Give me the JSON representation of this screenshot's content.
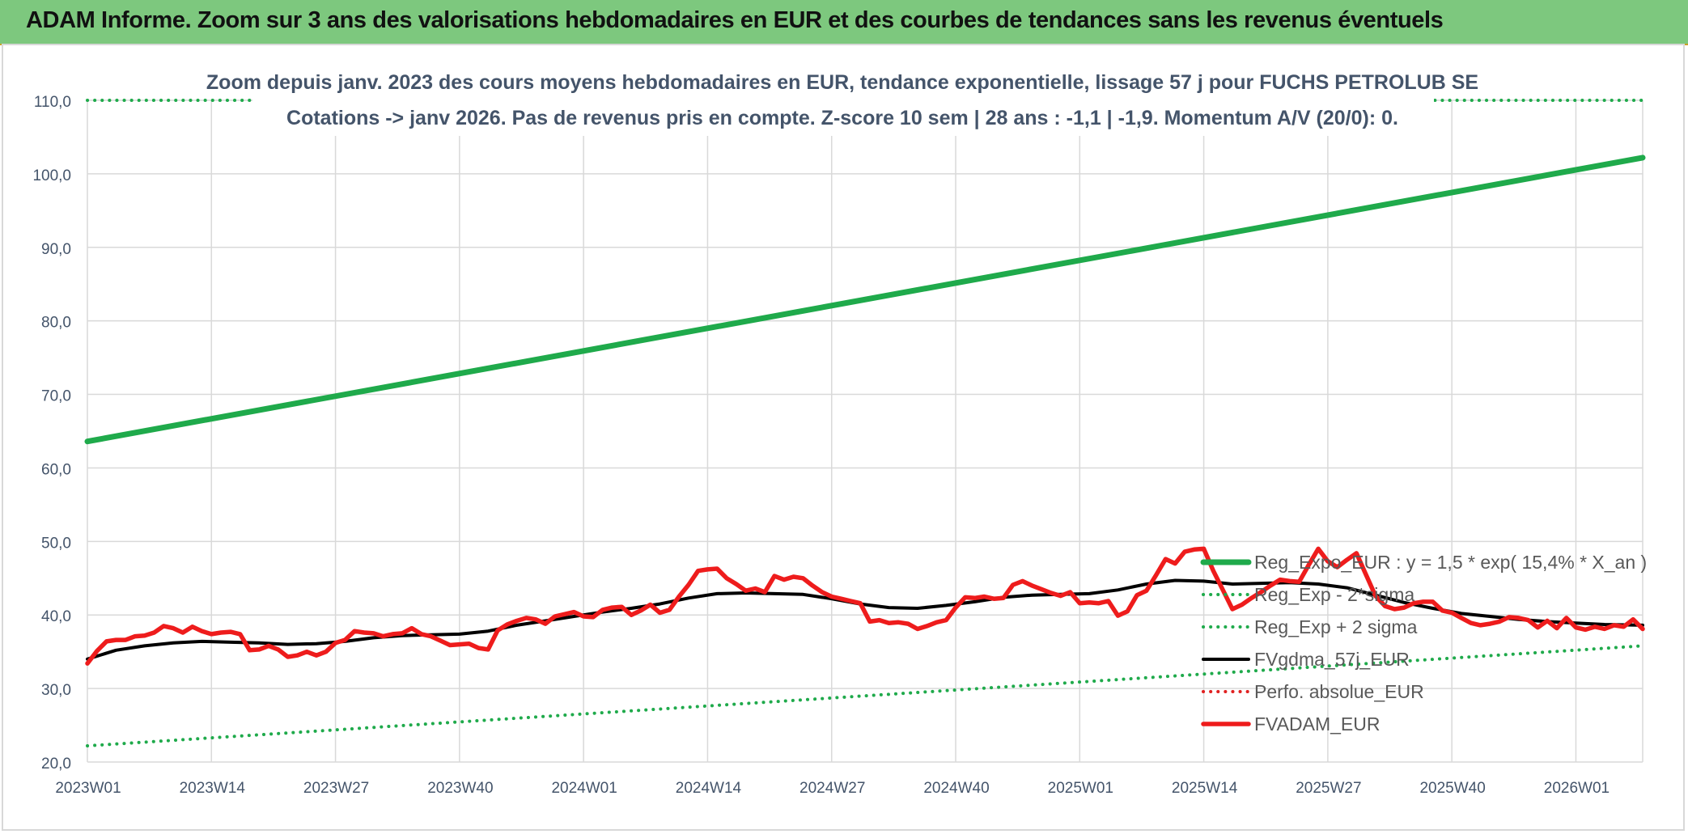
{
  "banner": {
    "title": "ADAM Informe. Zoom sur 3 ans des valorisations hebdomadaires en EUR et des courbes de tendances sans les revenus éventuels"
  },
  "chart_data": {
    "type": "line",
    "title": "Zoom depuis janv. 2023 des cours moyens hebdomadaires en EUR, tendance exponentielle, lissage 57 j pour FUCHS PETROLUB SE",
    "subtitle": "Cotations -> janv 2026. Pas de revenus pris en compte. Z-score 10 sem | 28 ans : -1,1 | -1,9. Momentum A/V (20/0): 0.",
    "xlabel": "",
    "ylabel": "",
    "ylim": [
      20,
      110
    ],
    "y_ticks": [
      "20,0",
      "30,0",
      "40,0",
      "50,0",
      "60,0",
      "70,0",
      "80,0",
      "90,0",
      "100,0",
      "110,0"
    ],
    "x_range": [
      0,
      163
    ],
    "x_ticks": [
      {
        "label": "2023W01",
        "x": 0
      },
      {
        "label": "2023W14",
        "x": 13
      },
      {
        "label": "2023W27",
        "x": 26
      },
      {
        "label": "2023W40",
        "x": 39
      },
      {
        "label": "2024W01",
        "x": 52
      },
      {
        "label": "2024W14",
        "x": 65
      },
      {
        "label": "2024W27",
        "x": 78
      },
      {
        "label": "2024W40",
        "x": 91
      },
      {
        "label": "2025W01",
        "x": 104
      },
      {
        "label": "2025W14",
        "x": 117
      },
      {
        "label": "2025W27",
        "x": 130
      },
      {
        "label": "2025W40",
        "x": 143
      },
      {
        "label": "2026W01",
        "x": 156
      }
    ],
    "grid": true,
    "legend_position": "right",
    "series": [
      {
        "name": "Reg_Expo_EUR : y = 1,5 * exp( 15,4% *  X_an )",
        "color": "#1faa4b",
        "style": "solid-thick",
        "points": [
          [
            0,
            63.6
          ],
          [
            163,
            102.2
          ]
        ]
      },
      {
        "name": "Reg_Exp - 2*sigma",
        "color": "#1faa4b",
        "style": "dotted",
        "points": [
          [
            0,
            22.2
          ],
          [
            163,
            35.8
          ]
        ]
      },
      {
        "name": "Reg_Exp + 2 sigma",
        "color": "#1faa4b",
        "style": "dotted",
        "points": [
          [
            0,
            110
          ],
          [
            17,
            110
          ],
          [
            139,
            110
          ],
          [
            163,
            110
          ]
        ]
      },
      {
        "name": "FVgdma_57j_EUR",
        "color": "#000000",
        "style": "solid",
        "points": [
          [
            0,
            34
          ],
          [
            3,
            35.2
          ],
          [
            6,
            35.8
          ],
          [
            9,
            36.2
          ],
          [
            12,
            36.4
          ],
          [
            15,
            36.3
          ],
          [
            18,
            36.2
          ],
          [
            21,
            36.0
          ],
          [
            24,
            36.1
          ],
          [
            27,
            36.4
          ],
          [
            30,
            36.9
          ],
          [
            33,
            37.2
          ],
          [
            36,
            37.3
          ],
          [
            39,
            37.4
          ],
          [
            42,
            37.8
          ],
          [
            45,
            38.6
          ],
          [
            48,
            39.2
          ],
          [
            51,
            39.8
          ],
          [
            54,
            40.4
          ],
          [
            57,
            40.9
          ],
          [
            60,
            41.5
          ],
          [
            63,
            42.3
          ],
          [
            66,
            42.9
          ],
          [
            69,
            43.0
          ],
          [
            72,
            42.9
          ],
          [
            75,
            42.8
          ],
          [
            78,
            42.2
          ],
          [
            81,
            41.5
          ],
          [
            84,
            41.0
          ],
          [
            87,
            40.9
          ],
          [
            90,
            41.3
          ],
          [
            93,
            41.8
          ],
          [
            96,
            42.4
          ],
          [
            99,
            42.7
          ],
          [
            102,
            42.8
          ],
          [
            105,
            42.9
          ],
          [
            108,
            43.4
          ],
          [
            111,
            44.2
          ],
          [
            114,
            44.7
          ],
          [
            117,
            44.6
          ],
          [
            120,
            44.2
          ],
          [
            123,
            44.3
          ],
          [
            126,
            44.4
          ],
          [
            129,
            44.2
          ],
          [
            132,
            43.7
          ],
          [
            135,
            42.7
          ],
          [
            138,
            41.7
          ],
          [
            141,
            40.9
          ],
          [
            144,
            40.2
          ],
          [
            147,
            39.8
          ],
          [
            150,
            39.4
          ],
          [
            153,
            39.1
          ],
          [
            156,
            38.9
          ],
          [
            159,
            38.7
          ],
          [
            163,
            38.6
          ]
        ]
      },
      {
        "name": "Perfo. absolue_EUR",
        "color": "#e02020",
        "style": "dotted",
        "points": []
      },
      {
        "name": "FVADAM_EUR",
        "color": "#ee1c1c",
        "style": "solid-thick",
        "points": [
          [
            0,
            33.4
          ],
          [
            1,
            35.1
          ],
          [
            2,
            36.4
          ],
          [
            3,
            36.6
          ],
          [
            4,
            36.6
          ],
          [
            5,
            37.1
          ],
          [
            6,
            37.2
          ],
          [
            7,
            37.6
          ],
          [
            8,
            38.5
          ],
          [
            9,
            38.2
          ],
          [
            10,
            37.6
          ],
          [
            11,
            38.4
          ],
          [
            12,
            37.8
          ],
          [
            13,
            37.4
          ],
          [
            14,
            37.6
          ],
          [
            15,
            37.7
          ],
          [
            16,
            37.4
          ],
          [
            17,
            35.2
          ],
          [
            18,
            35.3
          ],
          [
            19,
            35.8
          ],
          [
            20,
            35.3
          ],
          [
            21,
            34.3
          ],
          [
            22,
            34.5
          ],
          [
            23,
            35.0
          ],
          [
            24,
            34.5
          ],
          [
            25,
            35.0
          ],
          [
            26,
            36.2
          ],
          [
            27,
            36.6
          ],
          [
            28,
            37.8
          ],
          [
            29,
            37.6
          ],
          [
            30,
            37.5
          ],
          [
            31,
            37.1
          ],
          [
            32,
            37.4
          ],
          [
            33,
            37.5
          ],
          [
            34,
            38.2
          ],
          [
            35,
            37.4
          ],
          [
            36,
            37.1
          ],
          [
            37,
            36.5
          ],
          [
            38,
            35.9
          ],
          [
            39,
            36.0
          ],
          [
            40,
            36.1
          ],
          [
            41,
            35.5
          ],
          [
            42,
            35.3
          ],
          [
            43,
            37.9
          ],
          [
            44,
            38.7
          ],
          [
            45,
            39.2
          ],
          [
            46,
            39.6
          ],
          [
            47,
            39.4
          ],
          [
            48,
            38.8
          ],
          [
            49,
            39.8
          ],
          [
            50,
            40.1
          ],
          [
            51,
            40.4
          ],
          [
            52,
            39.8
          ],
          [
            53,
            39.7
          ],
          [
            54,
            40.7
          ],
          [
            55,
            41.0
          ],
          [
            56,
            41.1
          ],
          [
            57,
            40.0
          ],
          [
            58,
            40.6
          ],
          [
            59,
            41.4
          ],
          [
            60,
            40.3
          ],
          [
            61,
            40.7
          ],
          [
            62,
            42.5
          ],
          [
            63,
            44.1
          ],
          [
            64,
            46.0
          ],
          [
            65,
            46.2
          ],
          [
            66,
            46.3
          ],
          [
            67,
            45.0
          ],
          [
            68,
            44.2
          ],
          [
            69,
            43.3
          ],
          [
            70,
            43.6
          ],
          [
            71,
            43.1
          ],
          [
            72,
            45.3
          ],
          [
            73,
            44.8
          ],
          [
            74,
            45.2
          ],
          [
            75,
            45.0
          ],
          [
            76,
            44.0
          ],
          [
            77,
            43.1
          ],
          [
            78,
            42.5
          ],
          [
            79,
            42.2
          ],
          [
            80,
            41.9
          ],
          [
            81,
            41.6
          ],
          [
            82,
            39.1
          ],
          [
            83,
            39.3
          ],
          [
            84,
            38.9
          ],
          [
            85,
            39.0
          ],
          [
            86,
            38.8
          ],
          [
            87,
            38.1
          ],
          [
            88,
            38.5
          ],
          [
            89,
            39.0
          ],
          [
            90,
            39.3
          ],
          [
            91,
            41.0
          ],
          [
            92,
            42.4
          ],
          [
            93,
            42.3
          ],
          [
            94,
            42.5
          ],
          [
            95,
            42.2
          ],
          [
            96,
            42.3
          ],
          [
            97,
            44.1
          ],
          [
            98,
            44.6
          ],
          [
            99,
            44.0
          ],
          [
            100,
            43.5
          ],
          [
            101,
            43.0
          ],
          [
            102,
            42.6
          ],
          [
            103,
            43.1
          ],
          [
            104,
            41.6
          ],
          [
            105,
            41.7
          ],
          [
            106,
            41.6
          ],
          [
            107,
            41.9
          ],
          [
            108,
            39.9
          ],
          [
            109,
            40.5
          ],
          [
            110,
            42.7
          ],
          [
            111,
            43.3
          ],
          [
            112,
            45.4
          ],
          [
            113,
            47.6
          ],
          [
            114,
            47.0
          ],
          [
            115,
            48.6
          ],
          [
            116,
            48.9
          ],
          [
            117,
            49.0
          ],
          [
            118,
            46.0
          ],
          [
            119,
            43.4
          ],
          [
            120,
            40.8
          ],
          [
            121,
            41.4
          ],
          [
            122,
            42.3
          ],
          [
            123,
            43.1
          ],
          [
            124,
            44.0
          ],
          [
            125,
            44.8
          ],
          [
            126,
            44.6
          ],
          [
            127,
            44.5
          ],
          [
            128,
            46.8
          ],
          [
            129,
            49.0
          ],
          [
            130,
            47.3
          ],
          [
            131,
            46.5
          ],
          [
            132,
            47.5
          ],
          [
            133,
            48.4
          ],
          [
            134,
            45.5
          ],
          [
            135,
            42.6
          ],
          [
            136,
            41.2
          ],
          [
            137,
            40.8
          ],
          [
            138,
            41.0
          ],
          [
            139,
            41.6
          ],
          [
            140,
            41.8
          ],
          [
            141,
            41.8
          ],
          [
            142,
            40.6
          ],
          [
            143,
            40.3
          ],
          [
            144,
            39.6
          ],
          [
            145,
            38.9
          ],
          [
            146,
            38.6
          ],
          [
            147,
            38.8
          ],
          [
            148,
            39.1
          ],
          [
            149,
            39.7
          ],
          [
            150,
            39.6
          ],
          [
            151,
            39.3
          ],
          [
            152,
            38.3
          ],
          [
            153,
            39.2
          ],
          [
            154,
            38.2
          ],
          [
            155,
            39.6
          ],
          [
            156,
            38.3
          ],
          [
            157,
            38.0
          ],
          [
            158,
            38.4
          ],
          [
            159,
            38.1
          ],
          [
            160,
            38.6
          ],
          [
            161,
            38.4
          ],
          [
            162,
            39.4
          ],
          [
            163,
            38.1
          ]
        ]
      }
    ]
  }
}
